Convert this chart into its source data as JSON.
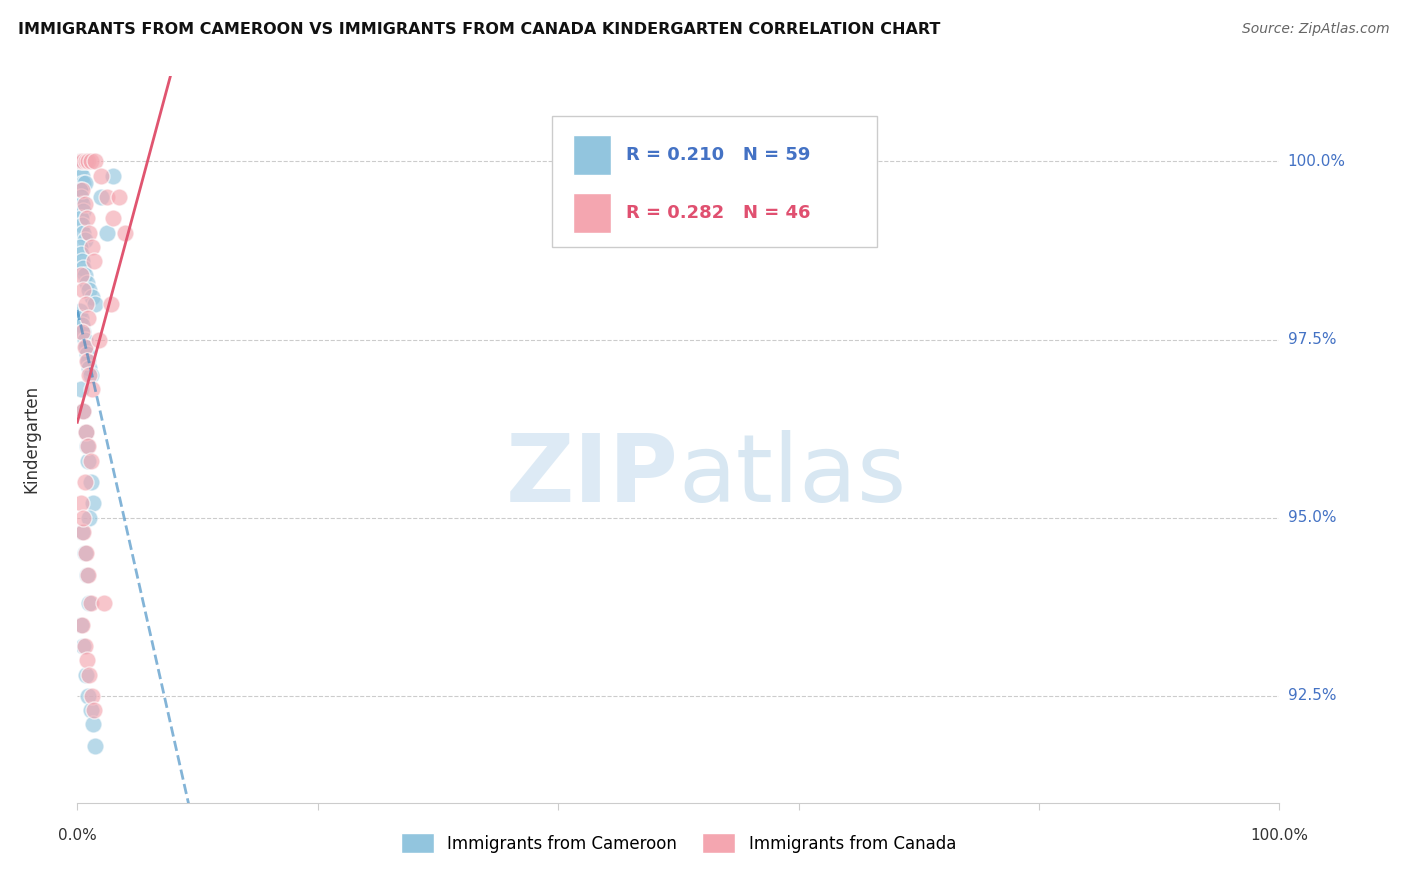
{
  "title": "IMMIGRANTS FROM CAMEROON VS IMMIGRANTS FROM CANADA KINDERGARTEN CORRELATION CHART",
  "source": "Source: ZipAtlas.com",
  "ylabel": "Kindergarten",
  "ylabel_ticks": [
    "92.5%",
    "95.0%",
    "97.5%",
    "100.0%"
  ],
  "ylabel_tick_vals": [
    92.5,
    95.0,
    97.5,
    100.0
  ],
  "xmin": 0.0,
  "xmax": 100.0,
  "ymin": 91.0,
  "ymax": 101.2,
  "cameroon_R": 0.21,
  "cameroon_N": 59,
  "canada_R": 0.282,
  "canada_N": 46,
  "cameroon_color": "#92c5de",
  "canada_color": "#f4a6b0",
  "cameroon_line_color": "#3182bd",
  "canada_line_color": "#e05570",
  "cameroon_x": [
    0.2,
    0.3,
    0.5,
    0.4,
    0.6,
    0.8,
    0.3,
    0.4,
    0.5,
    0.6,
    0.2,
    0.3,
    0.4,
    0.5,
    0.3,
    0.4,
    0.5,
    0.6,
    0.2,
    0.3,
    0.4,
    0.5,
    0.6,
    0.8,
    1.0,
    1.2,
    1.5,
    2.0,
    2.5,
    3.0,
    0.2,
    0.3,
    0.4,
    0.5,
    0.6,
    0.7,
    0.8,
    0.9,
    1.0,
    1.1,
    0.3,
    0.5,
    0.7,
    0.9,
    1.1,
    1.3,
    0.4,
    0.6,
    0.8,
    1.0,
    0.3,
    0.5,
    0.7,
    0.9,
    1.1,
    1.3,
    1.5,
    1.0,
    0.8
  ],
  "cameroon_y": [
    100.0,
    100.0,
    100.0,
    100.0,
    100.0,
    100.0,
    99.9,
    99.8,
    99.7,
    99.7,
    99.6,
    99.5,
    99.4,
    99.3,
    99.2,
    99.1,
    99.0,
    98.9,
    98.8,
    98.7,
    98.6,
    98.5,
    98.4,
    98.3,
    98.2,
    98.1,
    98.0,
    99.5,
    99.0,
    99.8,
    97.9,
    97.8,
    97.7,
    97.6,
    97.5,
    97.4,
    97.3,
    97.2,
    97.1,
    97.0,
    96.8,
    96.5,
    96.2,
    95.8,
    95.5,
    95.2,
    94.8,
    94.5,
    94.2,
    93.8,
    93.5,
    93.2,
    92.8,
    92.5,
    92.3,
    92.1,
    91.8,
    95.0,
    96.0
  ],
  "canada_x": [
    0.3,
    0.5,
    0.7,
    0.9,
    1.1,
    1.5,
    2.0,
    2.5,
    3.0,
    4.0,
    0.4,
    0.6,
    0.8,
    1.0,
    1.2,
    1.4,
    0.3,
    0.5,
    0.7,
    0.9,
    0.4,
    0.6,
    0.8,
    1.0,
    1.2,
    0.5,
    0.7,
    0.9,
    1.1,
    0.6,
    0.3,
    0.5,
    0.7,
    0.9,
    1.1,
    1.8,
    2.8,
    0.4,
    0.6,
    0.8,
    1.0,
    1.2,
    1.4,
    2.2,
    3.5,
    0.5
  ],
  "canada_y": [
    100.0,
    100.0,
    100.0,
    100.0,
    100.0,
    100.0,
    99.8,
    99.5,
    99.2,
    99.0,
    99.6,
    99.4,
    99.2,
    99.0,
    98.8,
    98.6,
    98.4,
    98.2,
    98.0,
    97.8,
    97.6,
    97.4,
    97.2,
    97.0,
    96.8,
    96.5,
    96.2,
    96.0,
    95.8,
    95.5,
    95.2,
    94.8,
    94.5,
    94.2,
    93.8,
    97.5,
    98.0,
    93.5,
    93.2,
    93.0,
    92.8,
    92.5,
    92.3,
    93.8,
    99.5,
    95.0
  ]
}
